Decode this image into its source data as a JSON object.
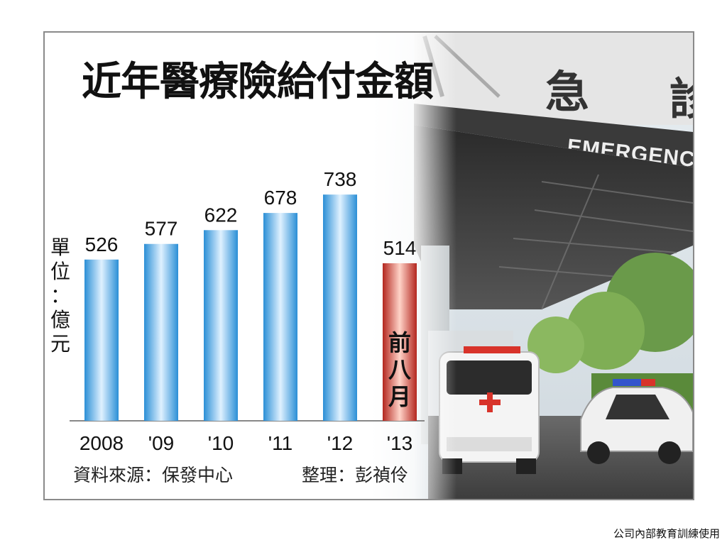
{
  "chart_data": {
    "type": "bar",
    "title": "近年醫療險給付金額",
    "ylabel": "單位：億元",
    "categories": [
      "2008",
      "'09",
      "'10",
      "'11",
      "'12",
      "'13"
    ],
    "values": [
      526,
      577,
      622,
      678,
      738,
      514
    ],
    "highlight_note": "前八月",
    "highlight_index": 5,
    "source": "資料來源：保發中心",
    "editor": "整理：彭禎伶",
    "colors": {
      "bar": "#3a9ee0",
      "highlight": "#c43a2e"
    }
  },
  "photo": {
    "sign_text": "EMERGENCY",
    "sign_kanji": [
      "急",
      "診"
    ]
  },
  "footer_text": "公司內部教育訓練使用"
}
